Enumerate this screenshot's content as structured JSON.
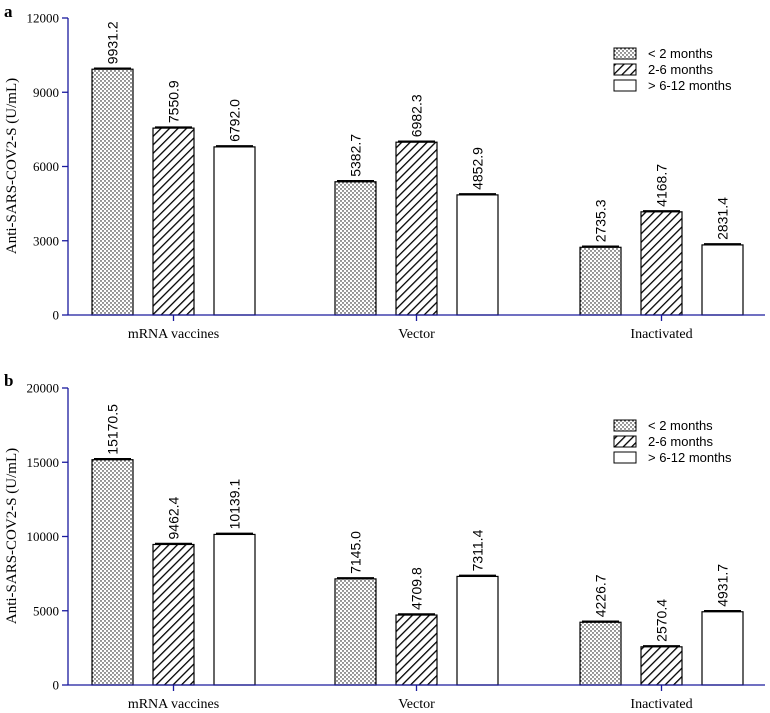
{
  "colors": {
    "axis": "#1a1a9e",
    "bar_stroke": "#000000",
    "bar_fill": "#ffffff",
    "text": "#000000"
  },
  "chart_data": [
    {
      "panel": "a",
      "type": "bar",
      "ylabel": "Anti-SARS-COV2-S (U/mL)",
      "xlabel": "",
      "ylim": [
        0,
        12000
      ],
      "yticks": [
        0,
        3000,
        6000,
        9000,
        12000
      ],
      "categories": [
        "mRNA vaccines",
        "Vector",
        "Inactivated"
      ],
      "legend_position": "top-right",
      "series": [
        {
          "name": "< 2 months",
          "pattern": "dots",
          "values": [
            9931.2,
            5382.7,
            2735.3
          ],
          "labels": [
            "9931.2",
            "5382.7",
            "2735.3"
          ]
        },
        {
          "name": "2-6 months",
          "pattern": "hatch",
          "values": [
            7550.9,
            6982.3,
            4168.7
          ],
          "labels": [
            "7550.9",
            "6982.3",
            "4168.7"
          ]
        },
        {
          "name": "> 6-12 months",
          "pattern": "none",
          "values": [
            6792.0,
            4852.9,
            2831.4
          ],
          "labels": [
            "6792.0",
            "4852.9",
            "2831.4"
          ]
        }
      ]
    },
    {
      "panel": "b",
      "type": "bar",
      "ylabel": "Anti-SARS-COV2-S (U/mL)",
      "xlabel": "",
      "ylim": [
        0,
        20000
      ],
      "yticks": [
        0,
        5000,
        10000,
        15000,
        20000
      ],
      "categories": [
        "mRNA vaccines",
        "Vector",
        "Inactivated"
      ],
      "legend_position": "top-right",
      "series": [
        {
          "name": "< 2 months",
          "pattern": "dots",
          "values": [
            15170.5,
            7145.0,
            4226.7
          ],
          "labels": [
            "15170.5",
            "7145.0",
            "4226.7"
          ]
        },
        {
          "name": "2-6 months",
          "pattern": "hatch",
          "values": [
            9462.4,
            4709.8,
            2570.4
          ],
          "labels": [
            "9462.4",
            "4709.8",
            "2570.4"
          ]
        },
        {
          "name": "> 6-12 months",
          "pattern": "none",
          "values": [
            10139.1,
            7311.4,
            4931.7
          ],
          "labels": [
            "10139.1",
            "7311.4",
            "4931.7"
          ]
        }
      ]
    }
  ]
}
